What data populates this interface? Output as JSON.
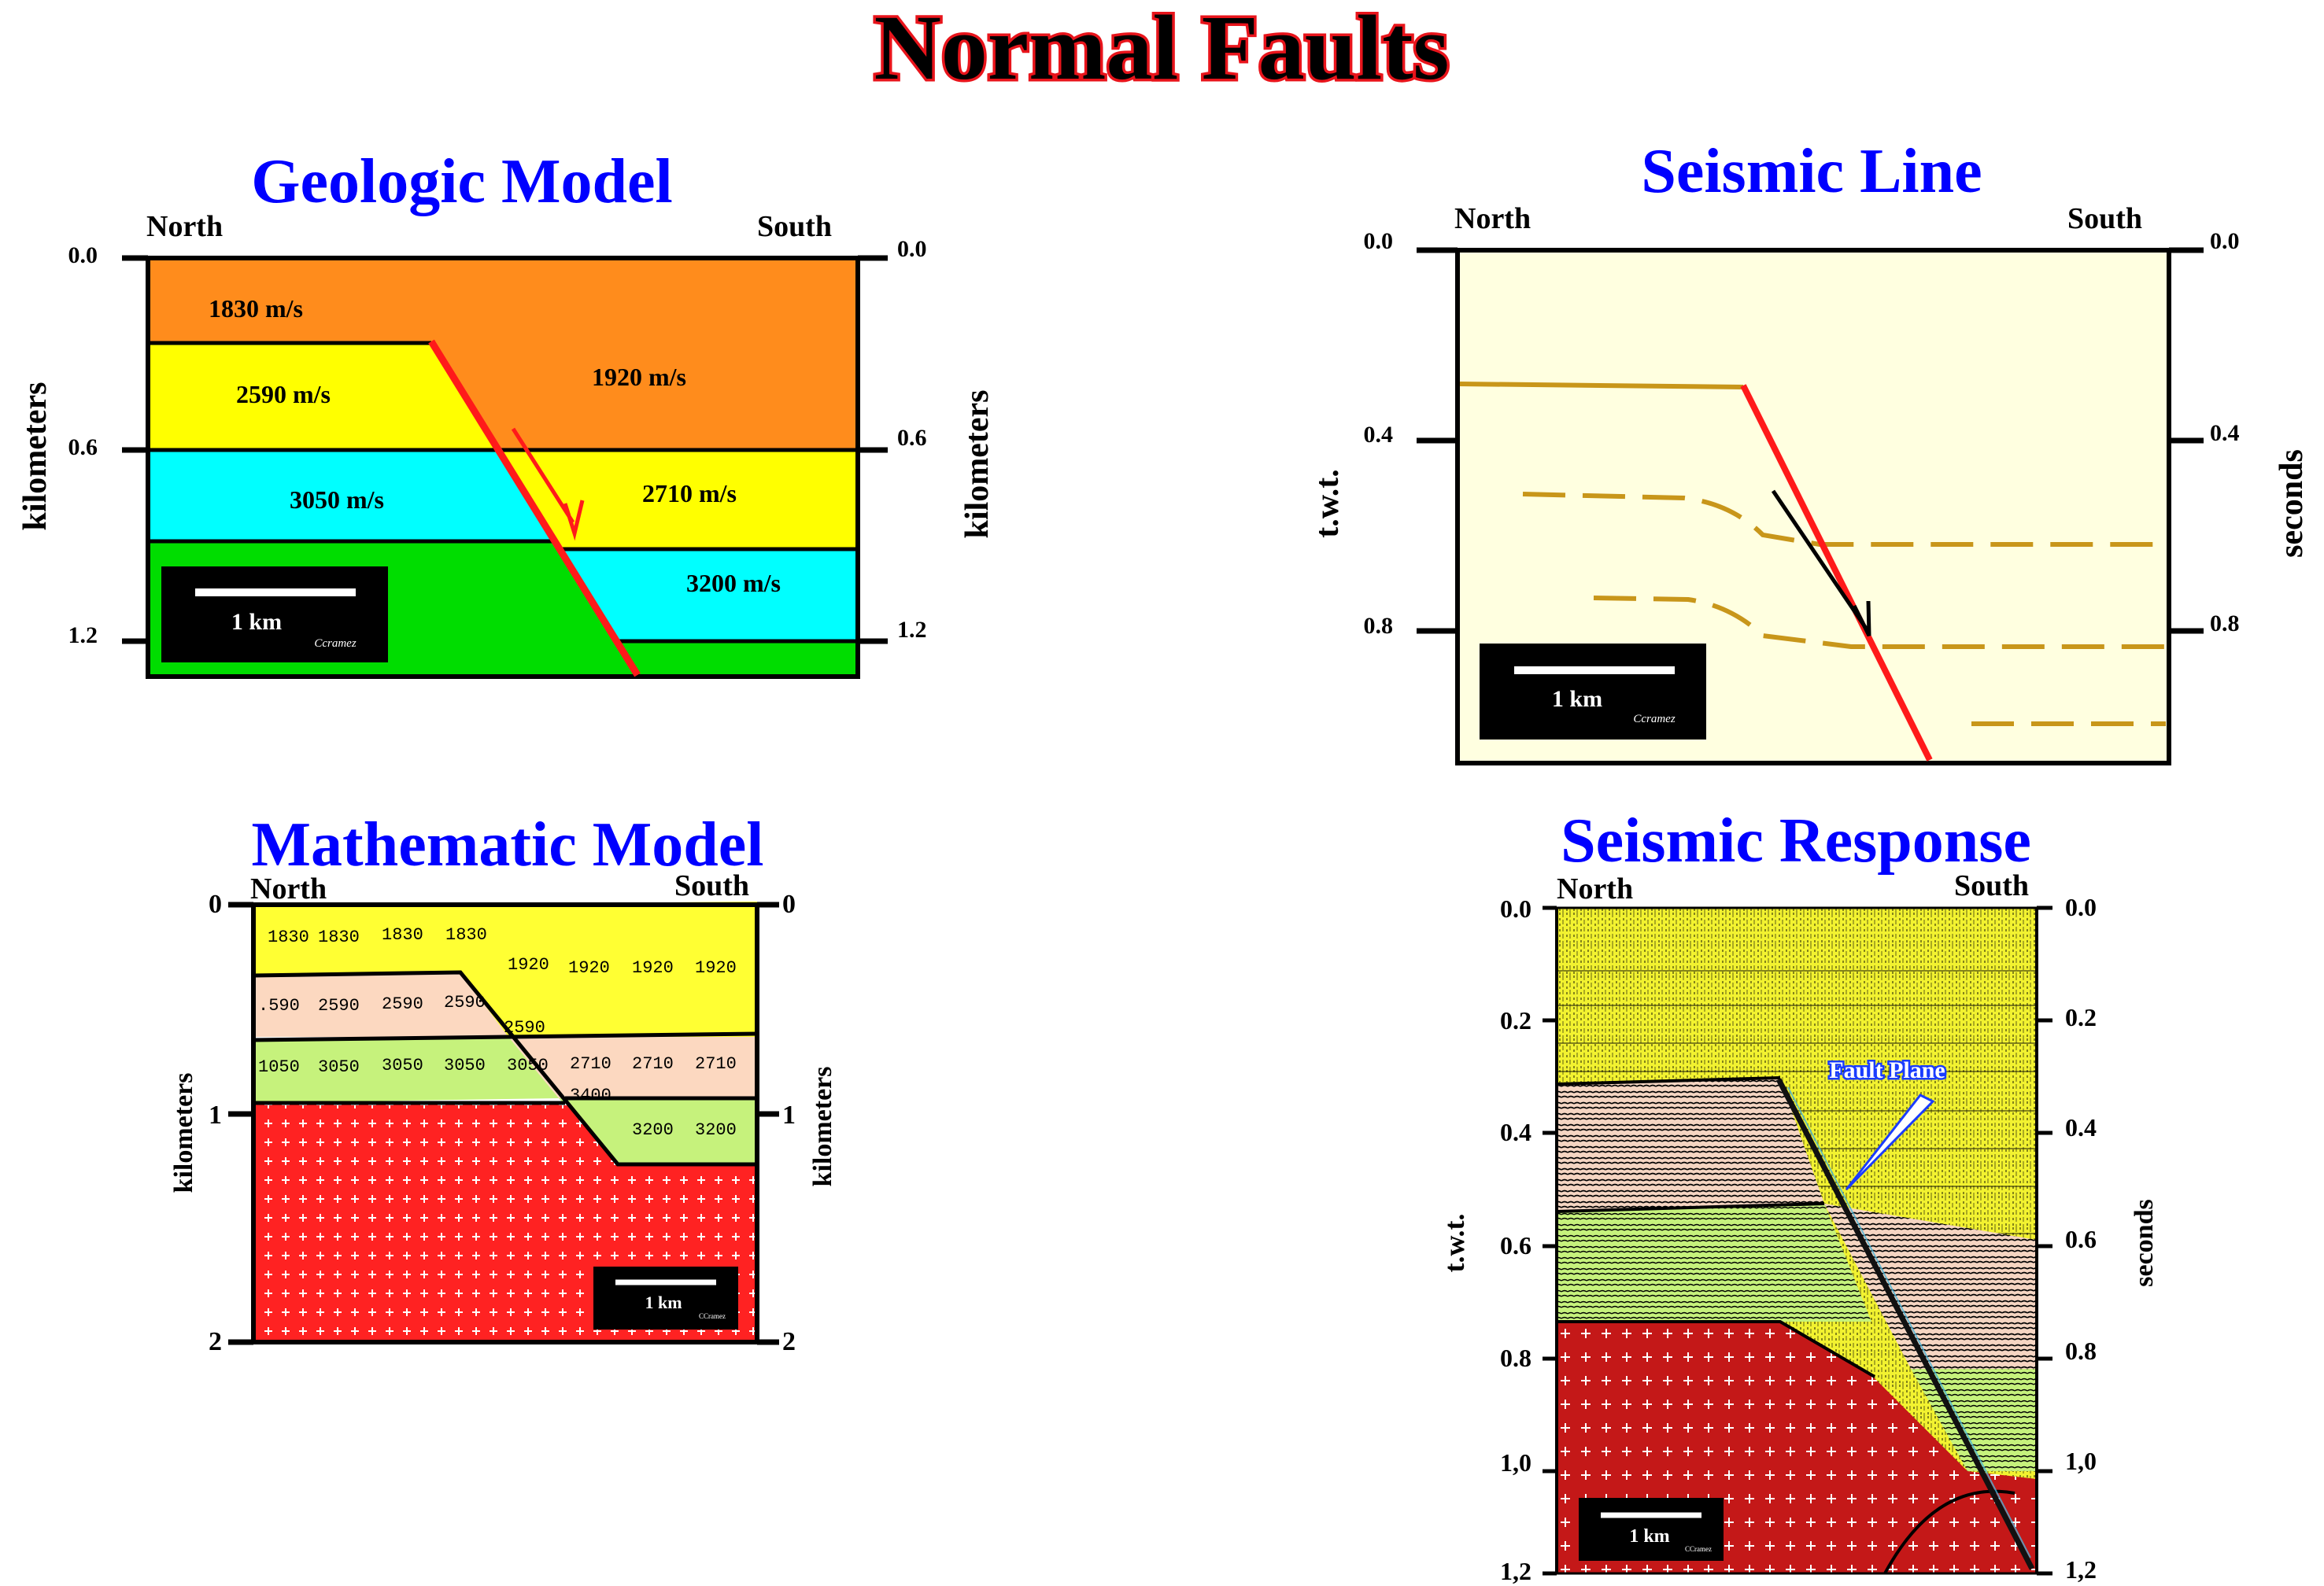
{
  "title": "Normal Faults",
  "colors": {
    "title_fill": "#000000",
    "title_outline": "#e8141b",
    "panel_title": "#0000ff",
    "orange": "#ff8c1c",
    "yellow": "#ffff00",
    "cyan": "#00ffff",
    "green": "#00dd00",
    "fault_red": "#ff1a1a",
    "seismic_bg": "#ffffe0",
    "horizon": "#c8961a",
    "math_yellow": "#ffff33",
    "math_peach": "#fcd8c0",
    "math_lightgreen": "#c6f27c",
    "math_red": "#ff2222"
  },
  "geologic_model": {
    "title": "Geologic Model",
    "north": "North",
    "south": "South",
    "left_ticks": [
      "0.0",
      "0.6",
      "1.2"
    ],
    "right_ticks": [
      "0.0",
      "0.6",
      "1.2"
    ],
    "left_axis_label": "kilometers",
    "right_axis_label": "kilometers",
    "velocities": [
      "1830 m/s",
      "2590 m/s",
      "3050 m/s",
      "1920 m/s",
      "2710 m/s",
      "3200 m/s"
    ],
    "scale_label": "1 km",
    "credit": "Ccramez"
  },
  "seismic_line": {
    "title": "Seismic Line",
    "north": "North",
    "south": "South",
    "left_ticks": [
      "0.0",
      "0.4",
      "0.8"
    ],
    "right_ticks": [
      "0.0",
      "0.4",
      "0.8"
    ],
    "left_axis_label": "t.w.t.",
    "right_axis_label": "seconds",
    "scale_label": "1 km",
    "credit": "Ccramez"
  },
  "mathematic_model": {
    "title": "Mathematic Model",
    "north": "North",
    "south": "South",
    "left_ticks": [
      "0",
      "1",
      "2"
    ],
    "right_ticks": [
      "0",
      "1",
      "2"
    ],
    "left_axis_label": "kilometers",
    "right_axis_label": "kilometers",
    "row1": [
      "1830",
      "1830",
      "1830",
      "1830"
    ],
    "row1_south": [
      "1920",
      "1920",
      "1920",
      "1920"
    ],
    "row2": [
      ".590",
      "2590",
      "2590",
      "2590"
    ],
    "row2_fault": "2590",
    "row3": [
      "1050",
      "3050",
      "3050",
      "3050",
      "3050"
    ],
    "row3_south": [
      "2710",
      "2710",
      "2710"
    ],
    "row4_fault": "3400",
    "row4_south": [
      "3200",
      "3200"
    ],
    "scale_label": "1 km",
    "credit": "CCramez"
  },
  "seismic_response": {
    "title": "Seismic Response",
    "north": "North",
    "south": "South",
    "left_ticks": [
      "0.0",
      "0.2",
      "0.4",
      "0.6",
      "0.8",
      "1,0",
      "1,2"
    ],
    "right_ticks": [
      "0.0",
      "0.2",
      "0.4",
      "0.6",
      "0.8",
      "1,0",
      "1,2"
    ],
    "left_axis_label": "t.w.t.",
    "right_axis_label": "seconds",
    "annotation": "Fault Plane",
    "scale_label": "1 km",
    "credit": "CCramez"
  }
}
